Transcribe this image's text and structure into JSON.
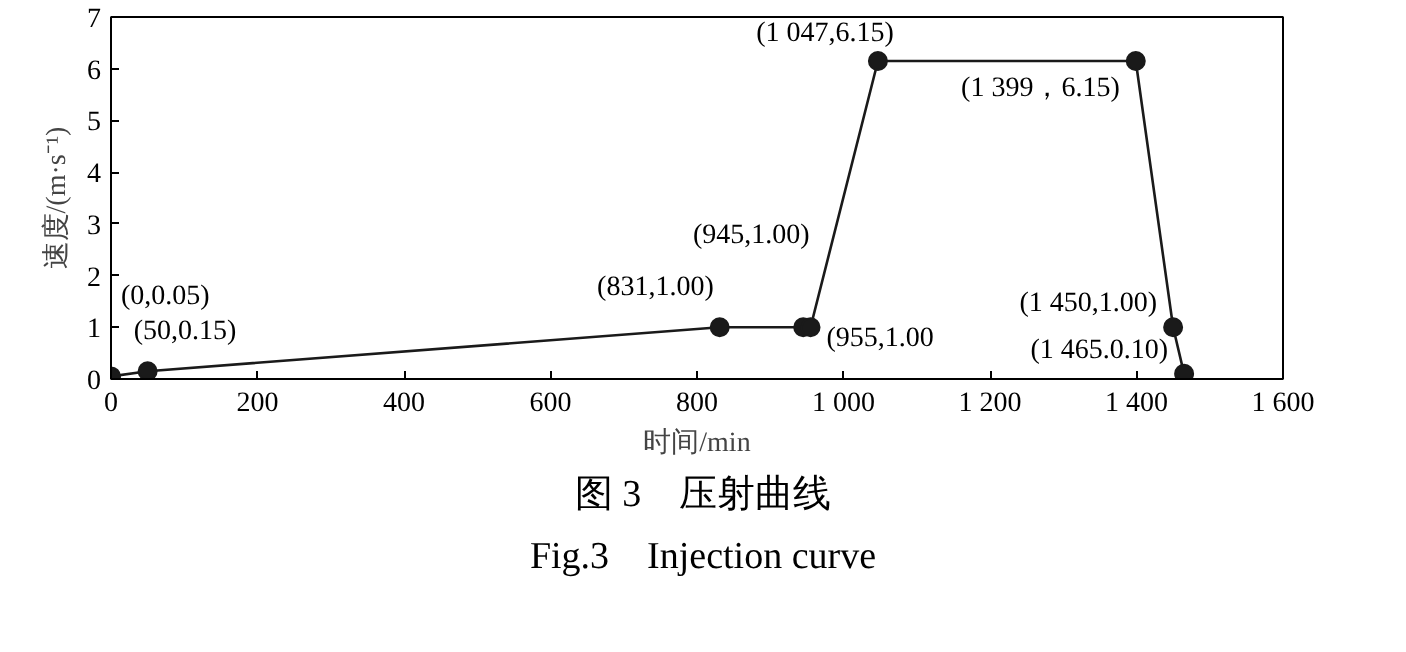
{
  "chart_data": {
    "type": "line",
    "xlabel": "时间/min",
    "ylabel": "速度/(m·s⁻¹)",
    "x": [
      0,
      50,
      831,
      945,
      955,
      1047,
      1399,
      1450,
      1465
    ],
    "values": [
      0.05,
      0.15,
      1.0,
      1.0,
      1.0,
      6.15,
      6.15,
      1.0,
      0.1
    ],
    "value_labels": [
      "(0,0.05)",
      "(50,0.15)",
      "(831,1.00)",
      "(945,1.00)",
      "(955,1.00",
      "(1 047,6.15)",
      "(1 399，6.15)",
      "(1 450,1.00)",
      "(1 465.0.10)"
    ],
    "color": "#1a1a1a",
    "marker": "circle",
    "line_style": "solid",
    "grid": false,
    "xlim": [
      0,
      1600
    ],
    "ylim": [
      0,
      7
    ],
    "xticks": [
      0,
      {
        "value": 200,
        "label": "200"
      },
      {
        "value": 400,
        "label": "400"
      },
      {
        "value": 600,
        "label": "600"
      },
      {
        "value": 800,
        "label": "800"
      },
      {
        "value": 1000,
        "label": "1 000"
      },
      {
        "value": 1200,
        "label": "1 200"
      },
      {
        "value": 1400,
        "label": "1 400"
      },
      {
        "value": 1600,
        "label": "1 600"
      }
    ],
    "yticks": [
      0,
      1,
      2,
      3,
      4,
      5,
      6,
      7
    ],
    "annotations": [
      "图 3　压射曲线",
      "Fig.3　Injection curve"
    ]
  }
}
